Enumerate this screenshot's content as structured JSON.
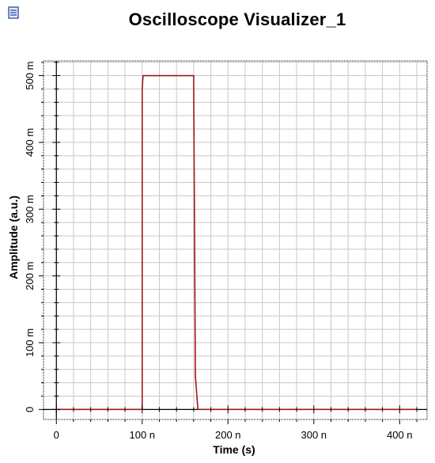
{
  "window": {
    "title": "Oscilloscope Visualizer_1",
    "icon": "document-icon"
  },
  "colors": {
    "trace": "#a01818",
    "grid": "#c8c8c8",
    "zero_line": "#000000",
    "frame": "#000000"
  },
  "chart_data": {
    "type": "line",
    "title": "Oscilloscope Visualizer_1",
    "xlabel": "Time (s)",
    "ylabel": "Amplitude (a.u.)",
    "xlim": [
      -1.5e-08,
      4.32e-07
    ],
    "ylim": [
      -0.015,
      0.522
    ],
    "grid": true,
    "x_ticks": [
      {
        "value": 0,
        "label": "0"
      },
      {
        "value": 1e-07,
        "label": "100 n"
      },
      {
        "value": 2e-07,
        "label": "200 n"
      },
      {
        "value": 3e-07,
        "label": "300 n"
      },
      {
        "value": 4e-07,
        "label": "400 n"
      }
    ],
    "y_ticks": [
      {
        "value": 0,
        "label": "0"
      },
      {
        "value": 0.1,
        "label": "100 m"
      },
      {
        "value": 0.2,
        "label": "200 m"
      },
      {
        "value": 0.3,
        "label": "300 m"
      },
      {
        "value": 0.4,
        "label": "400 m"
      },
      {
        "value": 0.5,
        "label": "500 m"
      }
    ],
    "series": [
      {
        "x": [
          0,
          1e-07,
          1e-07,
          1.01e-07,
          1.6e-07,
          1.6e-07,
          1.62e-07,
          1.64e-07,
          1.65e-07,
          4.2e-07
        ],
        "y": [
          0,
          0,
          0.48,
          0.5,
          0.5,
          0.49,
          0.05,
          0.015,
          0,
          0
        ]
      }
    ]
  }
}
